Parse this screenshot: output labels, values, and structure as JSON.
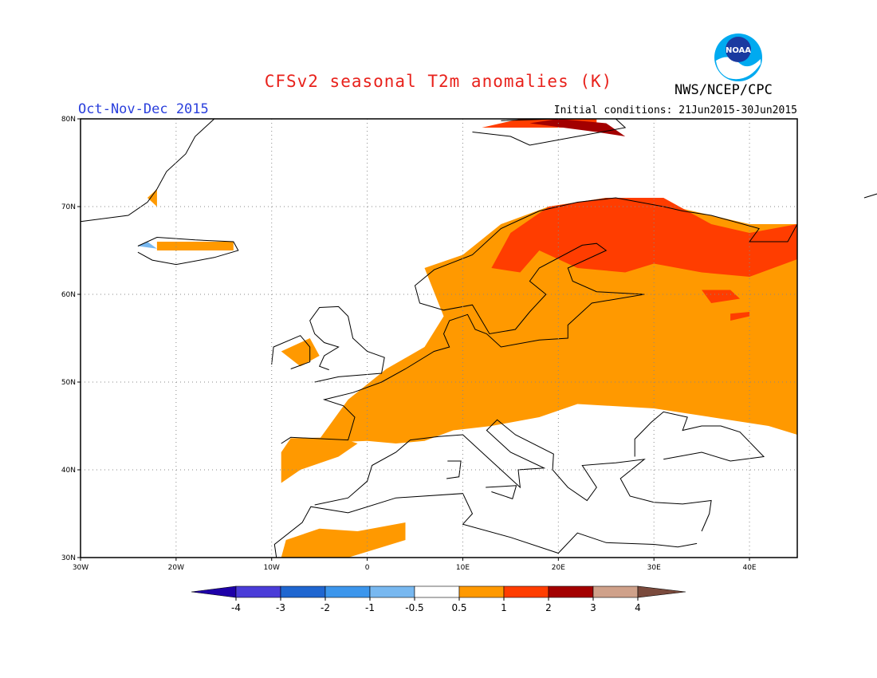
{
  "header": {
    "title": "CFSv2 seasonal T2m anomalies (K)",
    "season": "Oct-Nov-Dec 2015",
    "initial_conditions": "Initial conditions: 21Jun2015-30Jun2015",
    "agency": "NWS/NCEP/CPC",
    "logo_text": "NOAA"
  },
  "map": {
    "region": "Europe",
    "lon_range": [
      -30,
      45
    ],
    "lat_range": [
      30,
      80
    ],
    "lon_labels": [
      "30W",
      "20W",
      "10W",
      "0",
      "10E",
      "20E",
      "30E",
      "40E"
    ],
    "lat_labels": [
      "30N",
      "40N",
      "50N",
      "60N",
      "70N",
      "80N"
    ],
    "grid": "dotted"
  },
  "legend": {
    "labels": [
      "-4",
      "-3",
      "-2",
      "-1",
      "-0.5",
      "0.5",
      "1",
      "2",
      "3",
      "4"
    ],
    "colors": [
      "#1e00a8",
      "#4a3cd8",
      "#1f66d0",
      "#3c96ec",
      "#78b8f0",
      "#ffffff",
      "#ff9900",
      "#ff3d00",
      "#a30000",
      "#cfa18a",
      "#7a4a3c"
    ]
  }
}
